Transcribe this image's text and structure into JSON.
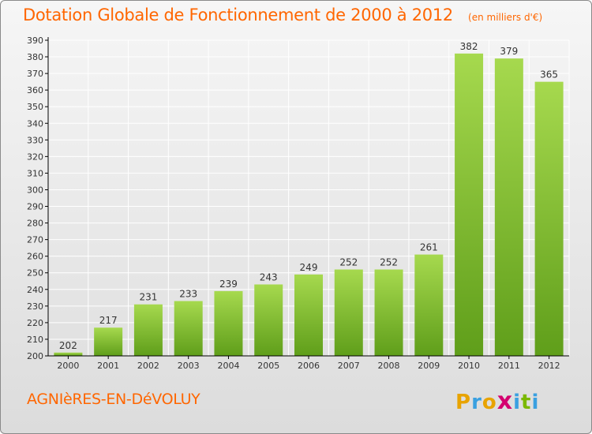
{
  "header": {
    "title": "Dotation Globale de Fonctionnement de 2000 à 2012",
    "subtitle": "(en milliers d'€)"
  },
  "footer": {
    "commune": "AGNIèRES-EN-DéVOLUY",
    "logo_letters": [
      "P",
      "r",
      "o",
      "x",
      "i",
      "t",
      "i"
    ],
    "logo_colors": [
      "#e8a300",
      "#3aa0e0",
      "#e8a300",
      "#d4006f",
      "#3aa0e0",
      "#7ab800",
      "#3aa0e0"
    ]
  },
  "colors": {
    "bar_light": "#a6d94e",
    "bar_dark": "#5f9e1a",
    "axis": "#000000",
    "grid": "#ffffff",
    "text": "#333333",
    "title": "#ff6600"
  },
  "chart_data": {
    "type": "bar",
    "categories": [
      "2000",
      "2001",
      "2002",
      "2003",
      "2004",
      "2005",
      "2006",
      "2007",
      "2008",
      "2009",
      "2010",
      "2011",
      "2012"
    ],
    "values": [
      202,
      217,
      231,
      233,
      239,
      243,
      249,
      252,
      252,
      261,
      382,
      379,
      365
    ],
    "title": "Dotation Globale de Fonctionnement de 2000 à 2012",
    "subtitle": "(en milliers d'€)",
    "xlabel": "",
    "ylabel": "",
    "ylim": [
      200,
      390
    ],
    "yticks": [
      200,
      210,
      220,
      230,
      240,
      250,
      260,
      270,
      280,
      290,
      300,
      310,
      320,
      330,
      340,
      350,
      360,
      370,
      380,
      390
    ],
    "grid": true,
    "legend": "none"
  }
}
